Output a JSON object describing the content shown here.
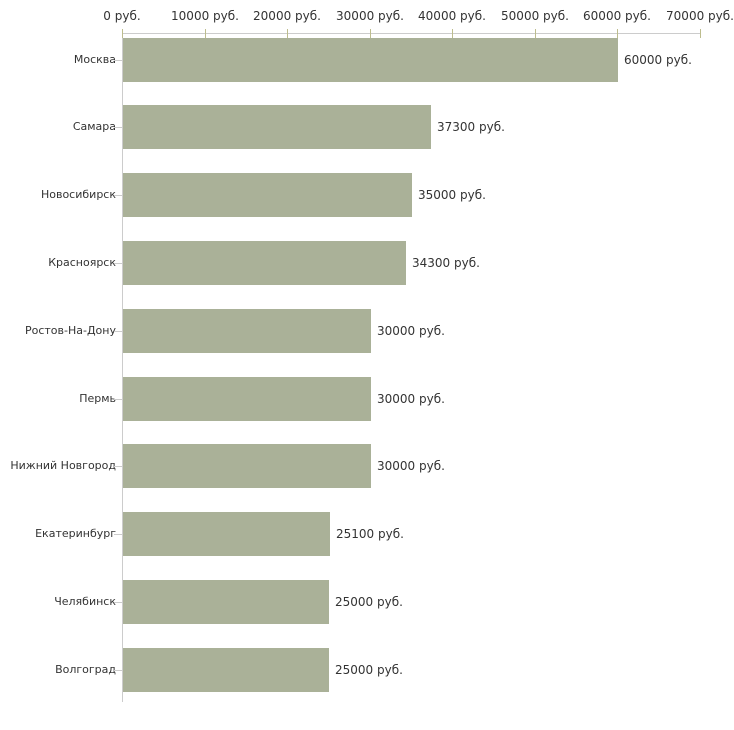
{
  "chart_data": {
    "type": "bar",
    "orientation": "horizontal",
    "title": "",
    "xlabel": "",
    "ylabel": "",
    "unit": "руб.",
    "categories": [
      "Москва",
      "Самара",
      "Новосибирск",
      "Красноярск",
      "Ростов-На-Дону",
      "Пермь",
      "Нижний Новгород",
      "Екатеринбург",
      "Челябинск",
      "Волгоград"
    ],
    "values": [
      60000,
      37300,
      35000,
      34300,
      30000,
      30000,
      30000,
      25100,
      25000,
      25000
    ],
    "value_labels": [
      "60000 руб.",
      "37300 руб.",
      "35000 руб.",
      "34300 руб.",
      "30000 руб.",
      "30000 руб.",
      "30000 руб.",
      "25100 руб.",
      "25000 руб.",
      "25000 руб."
    ],
    "x_axis": {
      "position": "top",
      "min": 0,
      "max": 70000,
      "tick_step": 10000,
      "tick_values": [
        0,
        10000,
        20000,
        30000,
        40000,
        50000,
        60000,
        70000
      ],
      "tick_labels": [
        "0 руб.",
        "10000 руб.",
        "20000 руб.",
        "30000 руб.",
        "40000 руб.",
        "50000 руб.",
        "60000 руб.",
        "70000 руб."
      ]
    },
    "grid": false,
    "legend": false,
    "colors": {
      "bar": "#aab198",
      "axis_line": "#cccccc",
      "x_tick": "#bdbd8e",
      "y_tick": "#cccccc",
      "text": "#333333",
      "background": "#ffffff"
    }
  }
}
